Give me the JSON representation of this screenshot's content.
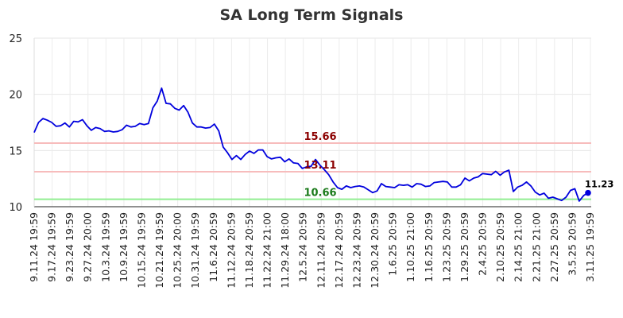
{
  "chart_data": {
    "type": "line",
    "title": "SA Long Term Signals",
    "xlabel": "",
    "ylabel": "",
    "ylim": [
      10,
      25
    ],
    "yticks": [
      "10",
      "15",
      "20",
      "25"
    ],
    "x_tick_labels": [
      "9.11.24 19:59",
      "9.17.24 19:59",
      "9.23.24 19:59",
      "9.27.24 20:00",
      "10.3.24 19:59",
      "10.9.24 19:59",
      "10.15.24 19:59",
      "10.21.24 19:59",
      "10.25.24 20:00",
      "10.31.24 19:59",
      "11.6.24 20:59",
      "11.12.24 20:59",
      "11.18.24 20:59",
      "11.22.24 21:00",
      "11.29.24 18:00",
      "12.5.24 20:59",
      "12.11.24 20:59",
      "12.17.24 20:59",
      "12.23.24 20:59",
      "12.30.24 20:59",
      "1.6.25 20:59",
      "1.10.25 21:00",
      "1.16.25 20:59",
      "1.23.25 20:59",
      "1.29.25 20:59",
      "2.4.25 20:59",
      "2.10.25 20:59",
      "2.14.25 21:00",
      "2.21.25 21:00",
      "2.27.25 20:59",
      "3.5.25 20:59",
      "3.11.25 19:59"
    ],
    "grid": true,
    "series": [
      {
        "color": "#0000dd",
        "values": [
          16.6,
          17.5,
          17.85,
          17.7,
          17.5,
          17.15,
          17.2,
          17.45,
          17.1,
          17.6,
          17.55,
          17.75,
          17.2,
          16.8,
          17.05,
          16.95,
          16.7,
          16.75,
          16.65,
          16.7,
          16.85,
          17.25,
          17.1,
          17.15,
          17.4,
          17.3,
          17.4,
          18.8,
          19.4,
          20.55,
          19.2,
          19.15,
          18.75,
          18.6,
          19.0,
          18.4,
          17.45,
          17.1,
          17.1,
          17.0,
          17.05,
          17.35,
          16.75,
          15.3,
          14.8,
          14.2,
          14.55,
          14.2,
          14.65,
          14.95,
          14.75,
          15.05,
          15.05,
          14.45,
          14.25,
          14.35,
          14.4,
          14.0,
          14.25,
          13.9,
          13.85,
          13.4,
          13.55,
          13.6,
          14.2,
          13.7,
          13.3,
          12.85,
          12.2,
          11.7,
          11.55,
          11.85,
          11.7,
          11.8,
          11.85,
          11.75,
          11.5,
          11.25,
          11.4,
          12.05,
          11.8,
          11.75,
          11.7,
          11.95,
          11.9,
          11.95,
          11.75,
          12.05,
          12.0,
          11.8,
          11.85,
          12.15,
          12.2,
          12.25,
          12.2,
          11.75,
          11.75,
          11.95,
          12.55,
          12.3,
          12.55,
          12.65,
          12.95,
          12.9,
          12.85,
          13.15,
          12.8,
          13.1,
          13.25,
          11.35,
          11.75,
          11.9,
          12.2,
          11.85,
          11.3,
          11.05,
          11.2,
          10.75,
          10.85,
          10.7,
          10.55,
          10.85,
          11.45,
          11.6,
          10.5,
          11.0,
          11.23
        ]
      }
    ],
    "reference_lines": [
      {
        "value": 15.66,
        "label": "15.66",
        "line_color": "#f7bcbc",
        "label_color": "#8b0000"
      },
      {
        "value": 13.11,
        "label": "13.11",
        "line_color": "#f7bcbc",
        "label_color": "#8b0000"
      },
      {
        "value": 10.66,
        "label": "10.66",
        "line_color": "#90ee90",
        "label_color": "#1a7a1a"
      }
    ],
    "last_value_label": "11.23"
  }
}
